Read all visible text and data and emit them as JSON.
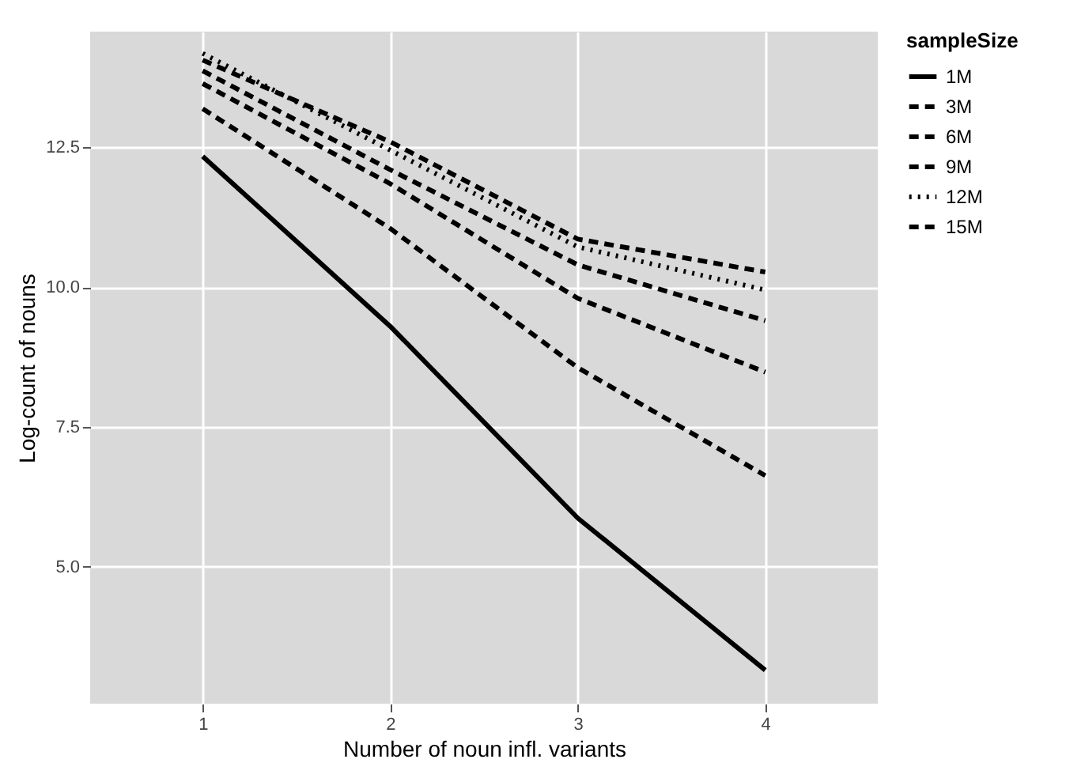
{
  "chart_data": {
    "type": "line",
    "xlabel": "Number of noun infl. variants",
    "ylabel": "Log-count of nouns",
    "legend_title": "sampleSize",
    "x": [
      1,
      2,
      3,
      4
    ],
    "series": [
      {
        "name": "1M",
        "color": "#000000",
        "line_style": "solid",
        "values": [
          12.34,
          9.3,
          5.87,
          3.15
        ]
      },
      {
        "name": "3M",
        "color": "#000000",
        "line_style": "dashed",
        "values": [
          13.19,
          11.05,
          8.56,
          6.63
        ]
      },
      {
        "name": "6M",
        "color": "#000000",
        "line_style": "dashed",
        "values": [
          13.64,
          11.85,
          9.8,
          8.48
        ]
      },
      {
        "name": "9M",
        "color": "#000000",
        "line_style": "dashed",
        "values": [
          13.87,
          12.1,
          10.4,
          9.4
        ]
      },
      {
        "name": "12M",
        "color": "#000000",
        "line_style": "dotted",
        "values": [
          14.18,
          12.45,
          10.72,
          9.95
        ]
      },
      {
        "name": "15M",
        "color": "#000000",
        "line_style": "dashed",
        "values": [
          14.06,
          12.6,
          10.86,
          10.27
        ]
      }
    ],
    "xlim": [
      0.4,
      4.6
    ],
    "xticks": [
      1,
      2,
      3,
      4
    ],
    "ylim": [
      2.55,
      14.57
    ],
    "yticks": [
      {
        "value": 5,
        "label": "5.0"
      },
      7.5,
      {
        "value": 10,
        "label": "10.0"
      },
      12.5
    ],
    "grid": true,
    "legend": "right"
  }
}
